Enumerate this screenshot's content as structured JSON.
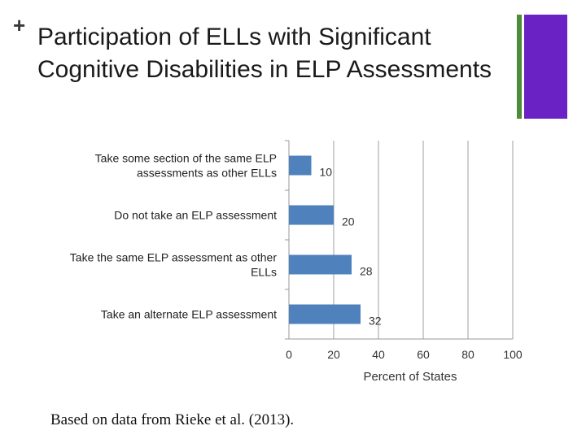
{
  "header": {
    "plus_glyph": "+",
    "title": "Participation of ELLs with Significant Cognitive Disabilities in ELP Assessments"
  },
  "colors": {
    "bar": "#4f81bd",
    "accent_green": "#4c8c3a",
    "accent_purple": "#6a22c4"
  },
  "chart_data": {
    "type": "bar",
    "orientation": "horizontal",
    "categories": [
      [
        "Take some section of the same ELP",
        "assessments as other ELLs"
      ],
      [
        "Do not take an ELP assessment"
      ],
      [
        "Take the same ELP assessment as other",
        "ELLs"
      ],
      [
        "Take an alternate ELP assessment"
      ]
    ],
    "values": [
      10,
      20,
      28,
      32
    ],
    "xlabel": "Percent of States",
    "xlim": [
      0,
      100
    ],
    "xticks": [
      0,
      20,
      40,
      60,
      80,
      100
    ],
    "grid": true
  },
  "source_note": "Based on data from Rieke et al. (2013)."
}
